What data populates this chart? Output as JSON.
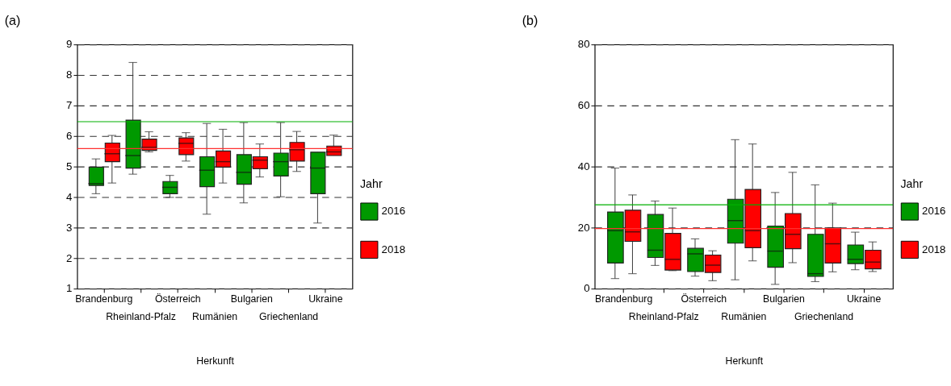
{
  "chart_data": [
    {
      "type": "box",
      "title": "(a)",
      "xlabel": "Herkunft",
      "legend_title": "Jahr",
      "legend": "right",
      "grid": "y",
      "categories": [
        "Brandenburg",
        "Rheinland-Pfalz",
        "Österreich",
        "Rumänien",
        "Bulgarien",
        "Griechenland",
        "Ukraine"
      ],
      "ylim": [
        1,
        9
      ],
      "yticks": [
        1,
        2,
        3,
        4,
        5,
        6,
        7,
        8,
        9
      ],
      "series": [
        {
          "name": "2016",
          "color": "#009900",
          "boxes": [
            {
              "low": 4.11,
              "q1": 4.38,
              "median": 4.44,
              "q3": 4.98,
              "high": 5.25
            },
            {
              "low": 4.75,
              "q1": 4.95,
              "median": 5.36,
              "q3": 6.52,
              "high": 8.41
            },
            {
              "low": 3.99,
              "q1": 4.11,
              "median": 4.32,
              "q3": 4.51,
              "high": 4.71
            },
            {
              "low": 3.44,
              "q1": 4.34,
              "median": 4.88,
              "q3": 5.32,
              "high": 6.41
            },
            {
              "low": 3.81,
              "q1": 4.42,
              "median": 4.81,
              "q3": 5.39,
              "high": 6.44
            },
            {
              "low": 4.01,
              "q1": 4.69,
              "median": 5.16,
              "q3": 5.44,
              "high": 6.44
            },
            {
              "low": 3.15,
              "q1": 4.11,
              "median": 4.95,
              "q3": 5.47,
              "high": 5.47
            }
          ]
        },
        {
          "name": "2018",
          "color": "#ff0000",
          "boxes": [
            {
              "low": 4.46,
              "q1": 5.16,
              "median": 5.42,
              "q3": 5.77,
              "high": 6.02
            },
            {
              "low": 5.48,
              "q1": 5.53,
              "median": 5.63,
              "q3": 5.9,
              "high": 6.14
            },
            {
              "low": 5.18,
              "q1": 5.39,
              "median": 5.76,
              "q3": 5.94,
              "high": 6.11
            },
            {
              "low": 4.46,
              "q1": 4.98,
              "median": 5.16,
              "q3": 5.51,
              "high": 6.22
            },
            {
              "low": 4.66,
              "q1": 4.93,
              "median": 5.21,
              "q3": 5.32,
              "high": 5.74
            },
            {
              "low": 4.84,
              "q1": 5.18,
              "median": 5.55,
              "q3": 5.79,
              "high": 6.15
            },
            {
              "low": 5.36,
              "q1": 5.36,
              "median": 5.48,
              "q3": 5.67,
              "high": 6.03
            }
          ]
        }
      ],
      "ref_lines": [
        {
          "axis": "y",
          "value": 6.47,
          "color": "#00b000"
        },
        {
          "axis": "y",
          "value": 5.59,
          "color": "#ff3030"
        }
      ]
    },
    {
      "type": "box",
      "title": "(b)",
      "xlabel": "Herkunft",
      "legend_title": "Jahr",
      "legend": "right",
      "grid": "y",
      "categories": [
        "Brandenburg",
        "Rheinland-Pfalz",
        "Österreich",
        "Rumänien",
        "Bulgarien",
        "Griechenland",
        "Ukraine"
      ],
      "ylim": [
        0,
        80
      ],
      "yticks": [
        0,
        20,
        40,
        60,
        80
      ],
      "series": [
        {
          "name": "2016",
          "color": "#009900",
          "boxes": [
            {
              "low": 3.3,
              "q1": 8.4,
              "median": 19.0,
              "q3": 25.1,
              "high": 39.5
            },
            {
              "low": 7.6,
              "q1": 10.2,
              "median": 12.6,
              "q3": 24.3,
              "high": 28.7
            },
            {
              "low": 4.1,
              "q1": 5.6,
              "median": 11.4,
              "q3": 13.2,
              "high": 16.3
            },
            {
              "low": 2.9,
              "q1": 14.9,
              "median": 22.3,
              "q3": 29.3,
              "high": 48.8
            },
            {
              "low": 1.4,
              "q1": 7.0,
              "median": 12.3,
              "q3": 20.5,
              "high": 31.5
            },
            {
              "low": 2.3,
              "q1": 4.0,
              "median": 4.9,
              "q3": 17.8,
              "high": 34.0
            },
            {
              "low": 6.2,
              "q1": 8.2,
              "median": 9.6,
              "q3": 14.3,
              "high": 18.5
            }
          ]
        },
        {
          "name": "2018",
          "color": "#ff0000",
          "boxes": [
            {
              "low": 4.9,
              "q1": 15.5,
              "median": 18.6,
              "q3": 25.7,
              "high": 30.7
            },
            {
              "low": 5.9,
              "q1": 6.1,
              "median": 9.6,
              "q3": 18.1,
              "high": 26.4
            },
            {
              "low": 2.6,
              "q1": 5.3,
              "median": 7.7,
              "q3": 11.0,
              "high": 12.4
            },
            {
              "low": 9.1,
              "q1": 13.4,
              "median": 19.0,
              "q3": 32.5,
              "high": 47.4
            },
            {
              "low": 8.5,
              "q1": 13.1,
              "median": 17.8,
              "q3": 24.6,
              "high": 38.1
            },
            {
              "low": 5.5,
              "q1": 8.4,
              "median": 14.7,
              "q3": 19.9,
              "high": 28.0
            },
            {
              "low": 5.6,
              "q1": 6.5,
              "median": 8.7,
              "q3": 12.6,
              "high": 15.3
            }
          ]
        }
      ],
      "ref_lines": [
        {
          "axis": "y",
          "value": 27.5,
          "color": "#00b000"
        },
        {
          "axis": "y",
          "value": 19.7,
          "color": "#ff3030"
        }
      ]
    }
  ]
}
